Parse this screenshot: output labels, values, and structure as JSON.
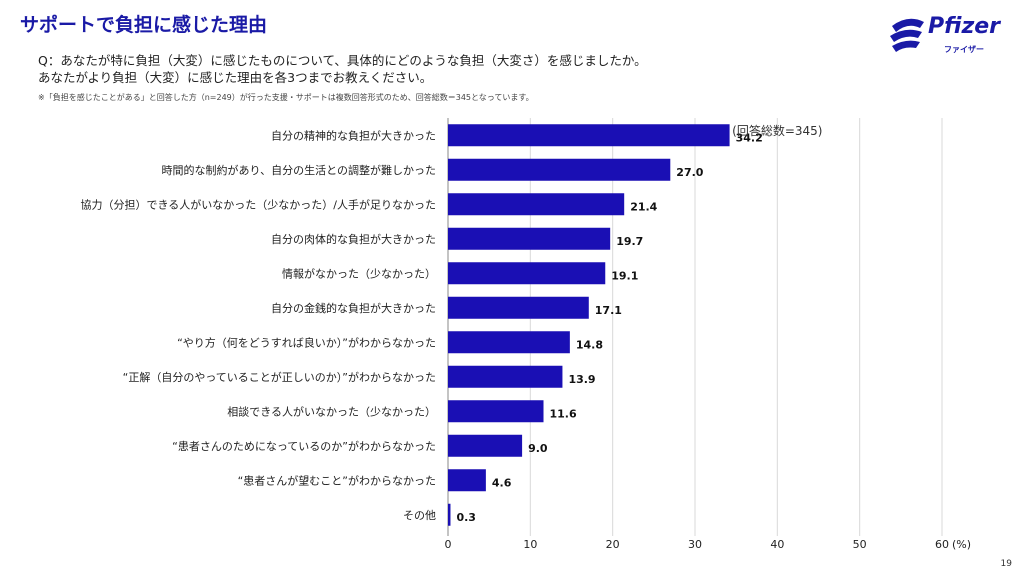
{
  "header": {
    "title": "サポートで負担に感じた理由",
    "question_line1": "Q：あなたが特に負担（大変）に感じたものについて、具体的にどのような負担（大変さ）を感じましたか。",
    "question_line2": "あなたがより負担（大変）に感じた理由を各3つまでお教えください。",
    "note": "※「負担を感じたことがある」と回答した方（n=249）が行った支援・サポートは複数回答形式のため、回答総数＝345となっています。"
  },
  "logo": {
    "word": "Pfizer",
    "sub": "ファイザー"
  },
  "page_number": "19",
  "colors": {
    "bar": "#1a0fb4",
    "title": "#1a1aa6",
    "grid": "#d9d9d9"
  },
  "chart_data": {
    "type": "bar",
    "orientation": "horizontal",
    "categories": [
      "自分の精神的な負担が大きかった",
      "時間的な制約があり、自分の生活との調整が難しかった",
      "協力（分担）できる人がいなかった（少なかった）/人手が足りなかった",
      "自分の肉体的な負担が大きかった",
      "情報がなかった（少なかった）",
      "自分の金銭的な負担が大きかった",
      "“やり方（何をどうすれば良いか）”がわからなかった",
      "“正解（自分のやっていることが正しいのか）”がわからなかった",
      "相談できる人がいなかった（少なかった）",
      "“患者さんのためになっているのか”がわからなかった",
      "“患者さんが望むこと”がわからなかった",
      "その他"
    ],
    "values": [
      34.2,
      27.0,
      21.4,
      19.7,
      19.1,
      17.1,
      14.8,
      13.9,
      11.6,
      9.0,
      4.6,
      0.3
    ],
    "value_labels": [
      "34.2",
      "27.0",
      "21.4",
      "19.7",
      "19.1",
      "17.1",
      "14.8",
      "13.9",
      "11.6",
      "9.0",
      "4.6",
      "0.3"
    ],
    "xlim": [
      0,
      60
    ],
    "xticks": [
      0,
      10,
      20,
      30,
      40,
      50,
      60
    ],
    "xtick_labels": [
      "0",
      "10",
      "20",
      "30",
      "40",
      "50",
      "60"
    ],
    "unit_label": "(%)",
    "annotation": "(回答総数=345)",
    "grid": true
  }
}
